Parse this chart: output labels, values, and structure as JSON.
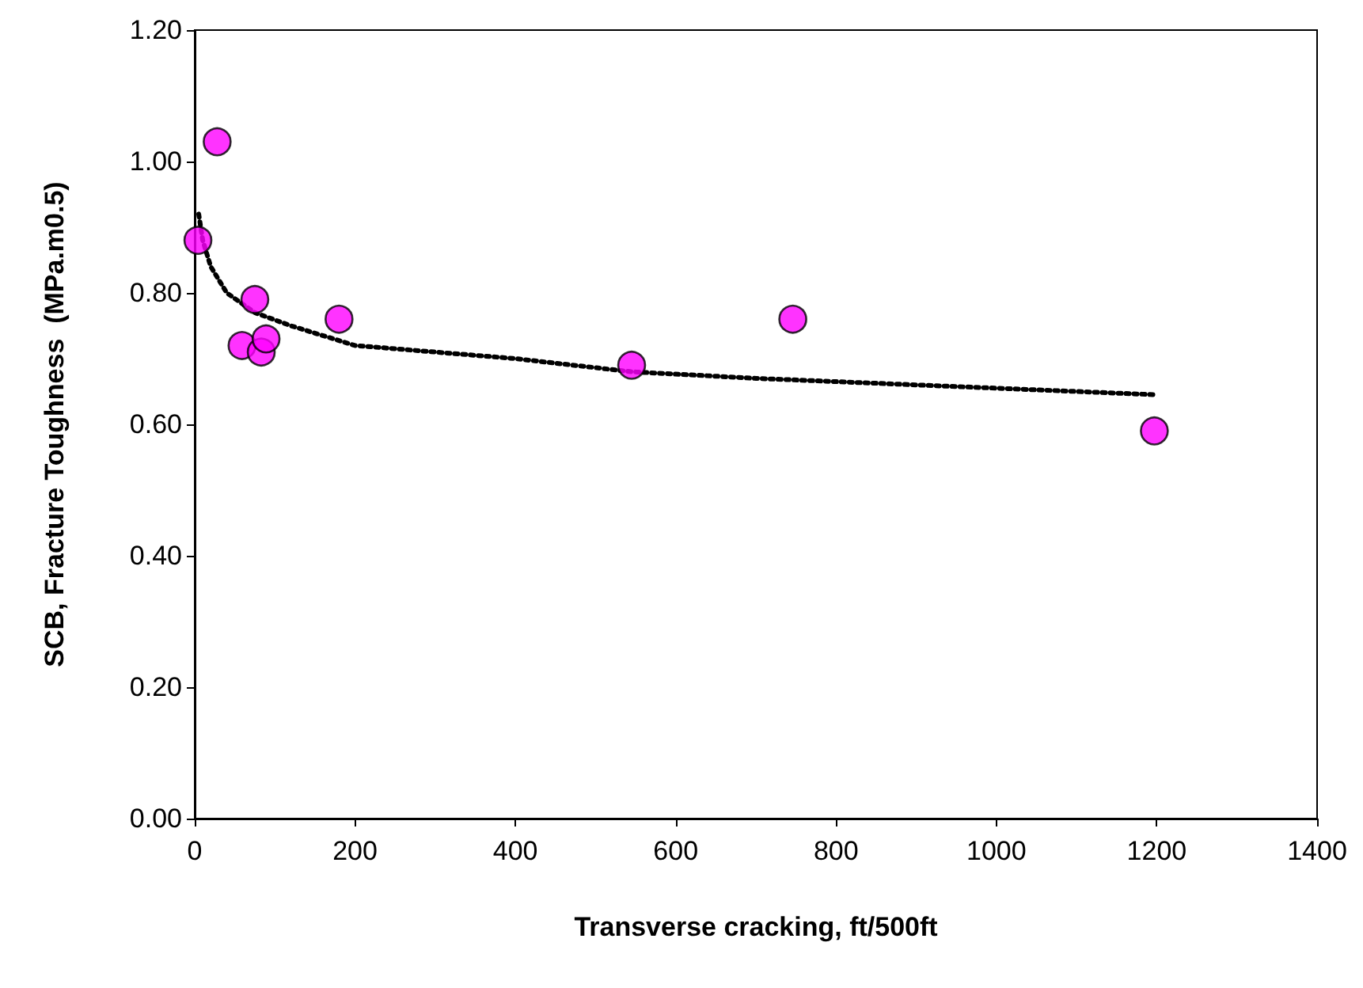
{
  "chart_data": {
    "type": "scatter",
    "xlabel": "Transverse cracking, ft/500ft",
    "ylabel": "SCB, Fracture Toughness  (MPa.m0.5)",
    "xlim": [
      0,
      1400
    ],
    "xticks": [
      0,
      200,
      400,
      600,
      800,
      1000,
      1200,
      1400
    ],
    "ylim": [
      0,
      1.2
    ],
    "yticks": [
      {
        "value": 0,
        "label": "0.00"
      },
      {
        "value": 0.2,
        "label": "0.20"
      },
      {
        "value": 0.4,
        "label": "0.40"
      },
      {
        "value": 0.6,
        "label": "0.60"
      },
      {
        "value": 0.8,
        "label": "0.80"
      },
      {
        "value": 1.0,
        "label": "1.00"
      },
      {
        "value": 1.2,
        "label": "1.20"
      }
    ],
    "grid": false,
    "series": [
      {
        "color": "#ff00ff",
        "marker": "circle",
        "x": [
          4,
          28,
          75,
          59,
          83,
          89,
          180,
          545,
          746,
          1197
        ],
        "values": [
          0.88,
          1.03,
          0.79,
          0.72,
          0.71,
          0.73,
          0.76,
          0.69,
          0.76,
          0.59
        ]
      },
      {
        "type": "line",
        "color": "#000000",
        "marker": "none",
        "line_style": "dotted",
        "x": [
          5,
          10,
          20,
          40,
          75,
          120,
          200,
          300,
          400,
          545,
          700,
          900,
          1200
        ],
        "values": [
          0.92,
          0.88,
          0.84,
          0.8,
          0.77,
          0.75,
          0.72,
          0.71,
          0.7,
          0.68,
          0.67,
          0.66,
          0.645
        ]
      }
    ]
  }
}
